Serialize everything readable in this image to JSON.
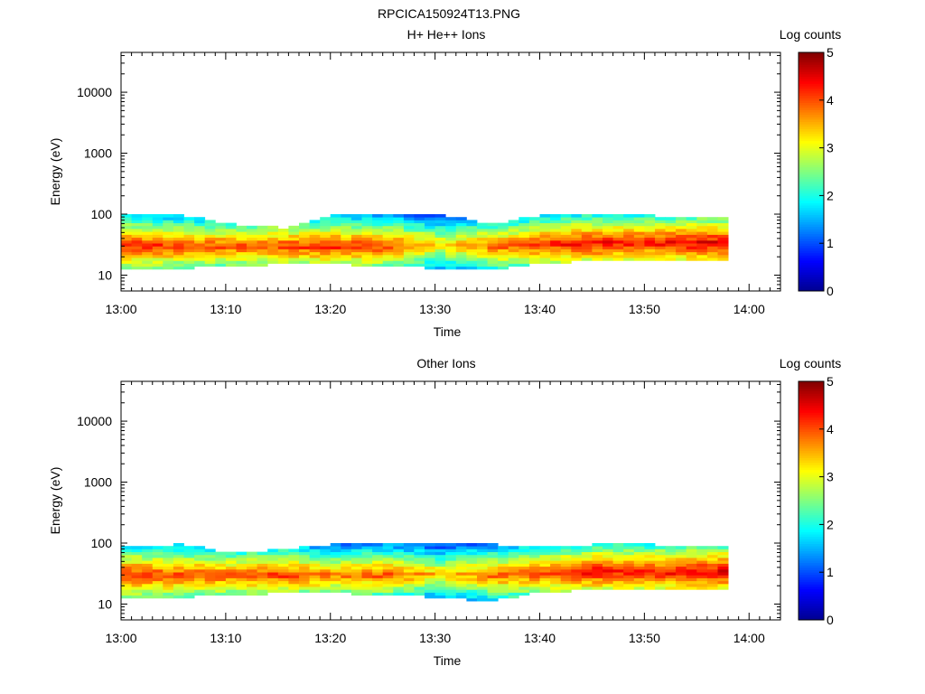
{
  "figure_title": "RPCICA150924T13.PNG",
  "colormap": [
    "#00008f",
    "#0000ff",
    "#0080ff",
    "#00ffff",
    "#80ff80",
    "#ffff00",
    "#ff8000",
    "#ff0000",
    "#800000"
  ],
  "chart_data": [
    {
      "type": "heatmap",
      "title": "H+ He++ Ions",
      "xlabel": "Time",
      "ylabel": "Energy (eV)",
      "x_ticks": [
        "13:00",
        "13:10",
        "13:20",
        "13:30",
        "13:40",
        "13:50",
        "14:00"
      ],
      "x_range": [
        "13:00",
        "14:03"
      ],
      "y_scale": "log",
      "y_ticks": [
        "10",
        "100",
        "1000",
        "10000"
      ],
      "y_range": [
        5.5,
        45000
      ],
      "colorbar": {
        "label": "Log counts",
        "range": [
          0,
          5
        ],
        "ticks": [
          "0",
          "1",
          "2",
          "3",
          "4",
          "5"
        ]
      },
      "data_time_range": [
        "13:00",
        "13:58"
      ],
      "band": [
        {
          "t": 0,
          "lo": 12,
          "hi": 95,
          "peak": 30,
          "max": 4.3
        },
        {
          "t": 5,
          "lo": 13,
          "hi": 95,
          "peak": 30,
          "max": 4.1
        },
        {
          "t": 10,
          "lo": 14,
          "hi": 70,
          "peak": 30,
          "max": 4.0
        },
        {
          "t": 15,
          "lo": 15,
          "hi": 60,
          "peak": 30,
          "max": 4.1
        },
        {
          "t": 20,
          "lo": 15,
          "hi": 95,
          "peak": 30,
          "max": 4.2
        },
        {
          "t": 25,
          "lo": 14,
          "hi": 95,
          "peak": 30,
          "max": 4.1
        },
        {
          "t": 30,
          "lo": 13,
          "hi": 100,
          "peak": 32,
          "max": 3.4
        },
        {
          "t": 35,
          "lo": 12,
          "hi": 70,
          "peak": 30,
          "max": 3.9
        },
        {
          "t": 40,
          "lo": 16,
          "hi": 95,
          "peak": 32,
          "max": 4.2
        },
        {
          "t": 45,
          "lo": 17,
          "hi": 95,
          "peak": 34,
          "max": 4.4
        },
        {
          "t": 50,
          "lo": 17,
          "hi": 95,
          "peak": 34,
          "max": 4.3
        },
        {
          "t": 55,
          "lo": 18,
          "hi": 90,
          "peak": 34,
          "max": 4.5
        },
        {
          "t": 58,
          "lo": 18,
          "hi": 90,
          "peak": 34,
          "max": 4.5
        }
      ]
    },
    {
      "type": "heatmap",
      "title": "Other Ions",
      "xlabel": "Time",
      "ylabel": "Energy (eV)",
      "x_ticks": [
        "13:00",
        "13:10",
        "13:20",
        "13:30",
        "13:40",
        "13:50",
        "14:00"
      ],
      "x_range": [
        "13:00",
        "14:03"
      ],
      "y_scale": "log",
      "y_ticks": [
        "10",
        "100",
        "1000",
        "10000"
      ],
      "y_range": [
        5.5,
        45000
      ],
      "colorbar": {
        "label": "Log counts",
        "range": [
          0,
          5
        ],
        "ticks": [
          "0",
          "1",
          "2",
          "3",
          "4",
          "5"
        ]
      },
      "data_time_range": [
        "13:00",
        "13:58"
      ],
      "band": [
        {
          "t": 0,
          "lo": 12,
          "hi": 85,
          "peak": 30,
          "max": 4.3
        },
        {
          "t": 5,
          "lo": 13,
          "hi": 95,
          "peak": 30,
          "max": 4.1
        },
        {
          "t": 10,
          "lo": 14,
          "hi": 70,
          "peak": 30,
          "max": 4.0
        },
        {
          "t": 15,
          "lo": 15,
          "hi": 80,
          "peak": 30,
          "max": 4.1
        },
        {
          "t": 20,
          "lo": 15,
          "hi": 95,
          "peak": 30,
          "max": 3.8
        },
        {
          "t": 25,
          "lo": 14,
          "hi": 95,
          "peak": 30,
          "max": 4.0
        },
        {
          "t": 30,
          "lo": 13,
          "hi": 100,
          "peak": 32,
          "max": 3.4
        },
        {
          "t": 35,
          "lo": 11,
          "hi": 95,
          "peak": 30,
          "max": 3.9
        },
        {
          "t": 40,
          "lo": 16,
          "hi": 90,
          "peak": 32,
          "max": 4.1
        },
        {
          "t": 45,
          "lo": 17,
          "hi": 95,
          "peak": 34,
          "max": 4.4
        },
        {
          "t": 50,
          "lo": 17,
          "hi": 95,
          "peak": 34,
          "max": 4.3
        },
        {
          "t": 55,
          "lo": 18,
          "hi": 90,
          "peak": 34,
          "max": 4.5
        },
        {
          "t": 58,
          "lo": 18,
          "hi": 90,
          "peak": 34,
          "max": 4.5
        }
      ]
    }
  ]
}
